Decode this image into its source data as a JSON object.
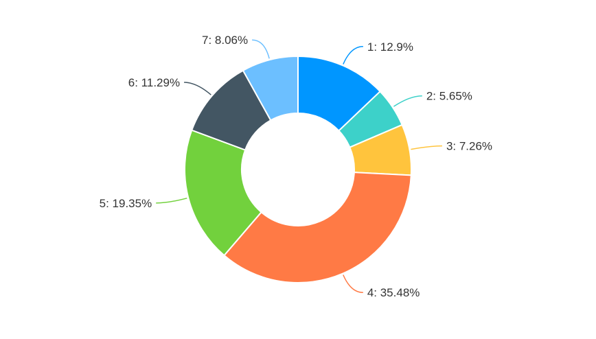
{
  "chart_data": {
    "type": "pie",
    "variant": "donut",
    "title": "",
    "legend": "none",
    "slices": [
      {
        "category": "1",
        "value": 12.9,
        "label": "1: 12.9%",
        "color": "#0096ff"
      },
      {
        "category": "2",
        "value": 5.65,
        "label": "2: 5.65%",
        "color": "#3dd1c9"
      },
      {
        "category": "3",
        "value": 7.26,
        "label": "3: 7.26%",
        "color": "#ffc43d"
      },
      {
        "category": "4",
        "value": 35.48,
        "label": "4: 35.48%",
        "color": "#ff7a45"
      },
      {
        "category": "5",
        "value": 19.35,
        "label": "5: 19.35%",
        "color": "#72d13d"
      },
      {
        "category": "6",
        "value": 11.29,
        "label": "6: 11.29%",
        "color": "#435663"
      },
      {
        "category": "7",
        "value": 8.06,
        "label": "7: 8.06%",
        "color": "#6cbfff"
      }
    ]
  }
}
